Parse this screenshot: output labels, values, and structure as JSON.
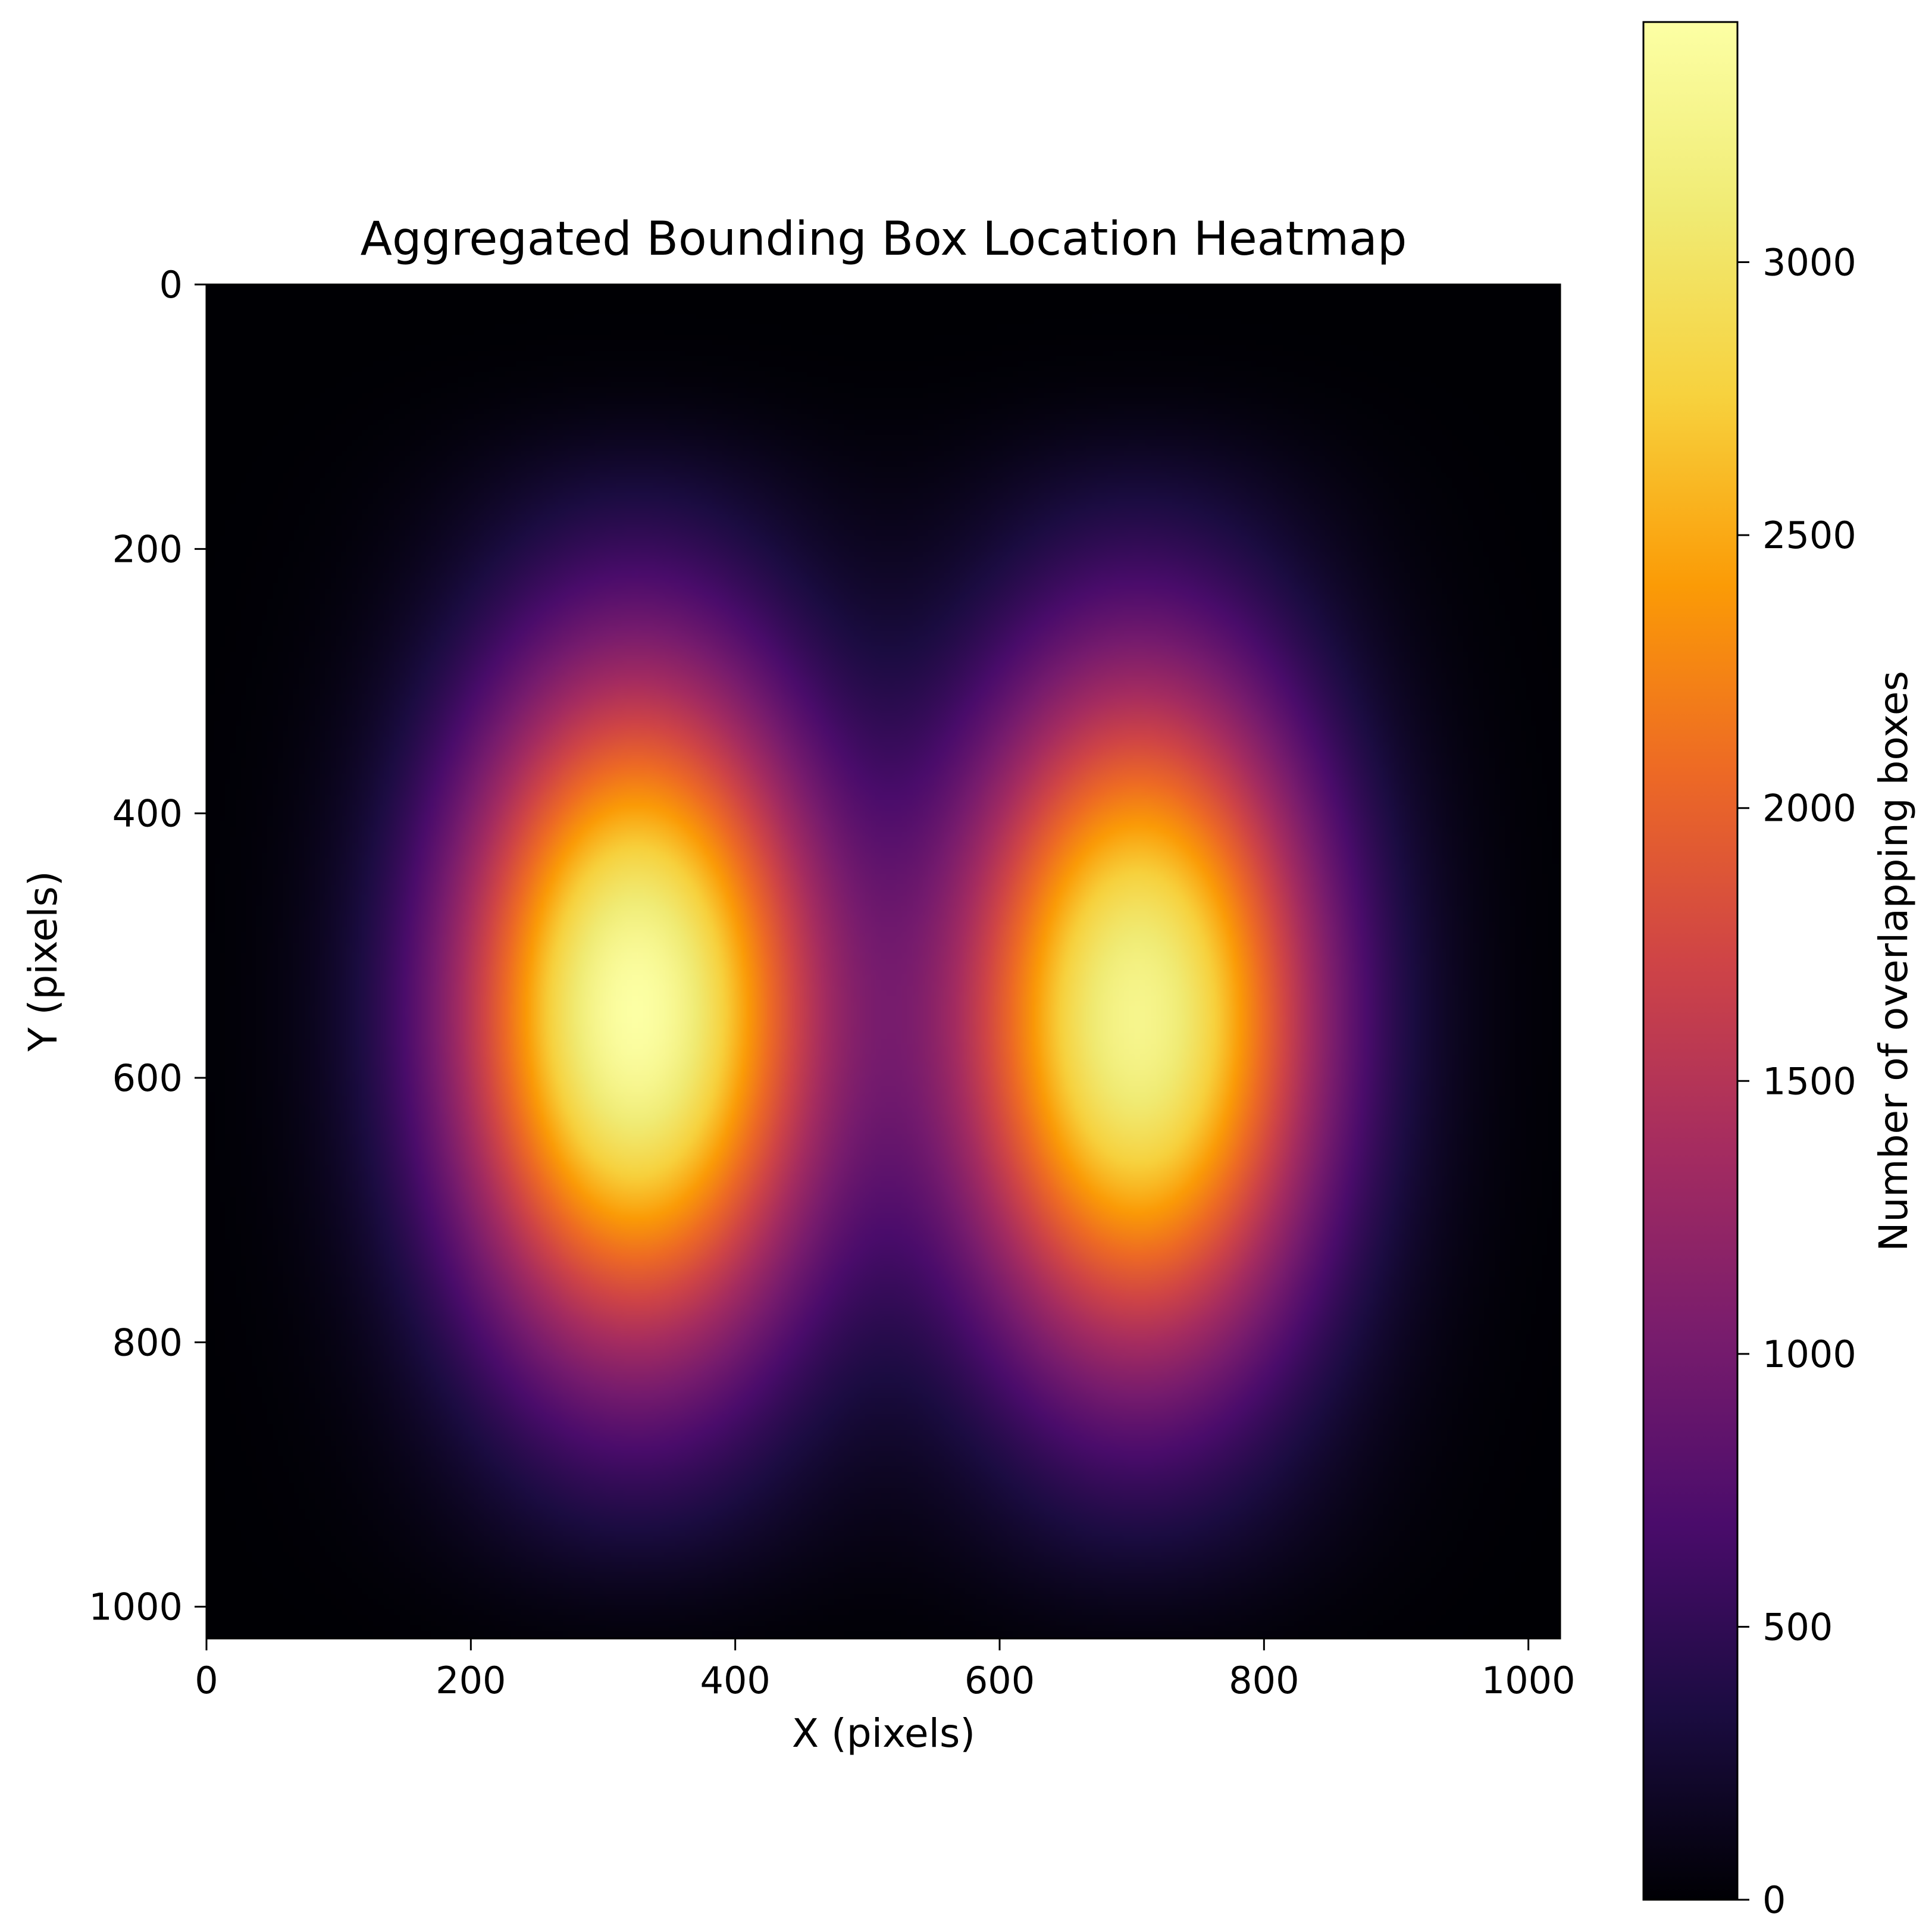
{
  "chart_data": {
    "type": "heatmap",
    "title": "Aggregated Bounding Box Location Heatmap",
    "xlabel": "X (pixels)",
    "ylabel": "Y (pixels)",
    "colorbar_label": "Number of overlapping boxes",
    "colormap": "inferno",
    "xlim": [
      0,
      1024
    ],
    "ylim": [
      1024,
      0
    ],
    "y_axis_inverted": true,
    "x_ticks": [
      0,
      200,
      400,
      600,
      800,
      1000
    ],
    "y_ticks": [
      0,
      200,
      400,
      600,
      800,
      1000
    ],
    "colorbar_range": [
      0,
      3440
    ],
    "colorbar_ticks": [
      0,
      500,
      1000,
      1500,
      2000,
      2500,
      3000
    ],
    "grid": false,
    "hotspots": [
      {
        "center_x": 325,
        "center_y": 550,
        "peak": 3440,
        "x_extent": [
          90,
          560
        ],
        "y_extent": [
          90,
          1010
        ]
      },
      {
        "center_x": 705,
        "center_y": 555,
        "peak": 3270,
        "x_extent": [
          470,
          940
        ],
        "y_extent": [
          90,
          1020
        ]
      }
    ]
  }
}
